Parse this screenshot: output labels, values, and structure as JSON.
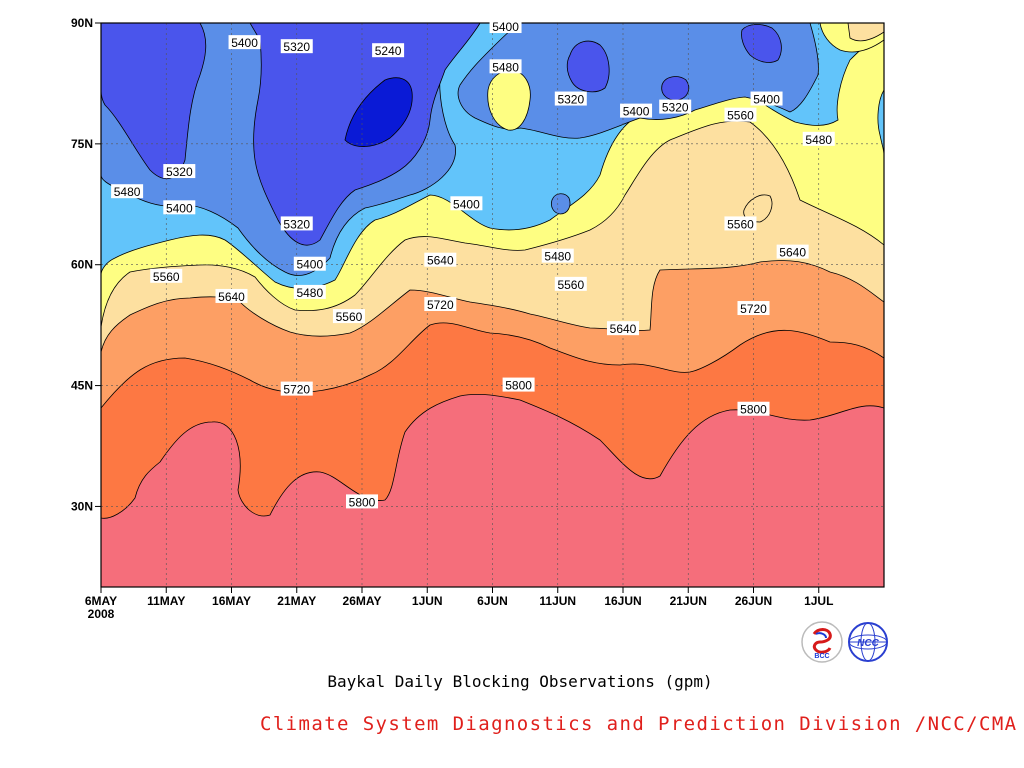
{
  "chart_data": {
    "type": "contour",
    "title": "Baykal Daily Blocking Observations (gpm)",
    "x_ticks": [
      "6MAY",
      "11MAY",
      "16MAY",
      "21MAY",
      "26MAY",
      "1JUN",
      "6JUN",
      "11JUN",
      "16JUN",
      "21JUN",
      "26JUN",
      "1JUL"
    ],
    "x_year": "2008",
    "y_ticks": [
      "30N",
      "45N",
      "60N",
      "75N",
      "90N"
    ],
    "xlim": [
      "2008-05-06",
      "2008-07-05"
    ],
    "ylim": [
      20,
      90
    ],
    "grid": true,
    "levels": [
      5240,
      5320,
      5400,
      5480,
      5560,
      5640,
      5720,
      5800
    ],
    "fill_colors": {
      "below_5240": "#0a1ad6",
      "5240_5320": "#4a55ec",
      "5320_5400": "#5a8ee8",
      "5400_5480": "#62c4fa",
      "5480_5560": "#fefe82",
      "5560_5640": "#fde0a0",
      "5640_5720": "#fd9f64",
      "5720_5800": "#fd7843",
      "above_5800": "#f56e7b"
    },
    "contour_labels": [
      {
        "date": "2008-05-17",
        "lat": 87.5,
        "level": 5400
      },
      {
        "date": "2008-05-21",
        "lat": 87.0,
        "level": 5320
      },
      {
        "date": "2008-05-28",
        "lat": 86.5,
        "level": 5240
      },
      {
        "date": "2008-06-06",
        "lat": 89.5,
        "level": 5400
      },
      {
        "date": "2008-06-06",
        "lat": 84.5,
        "level": 5480
      },
      {
        "date": "2008-06-11",
        "lat": 80.5,
        "level": 5320
      },
      {
        "date": "2008-06-16",
        "lat": 79.0,
        "level": 5400
      },
      {
        "date": "2008-06-19",
        "lat": 79.5,
        "level": 5320
      },
      {
        "date": "2008-06-26",
        "lat": 80.5,
        "level": 5400
      },
      {
        "date": "2008-06-24",
        "lat": 78.5,
        "level": 5560
      },
      {
        "date": "2008-06-30",
        "lat": 75.5,
        "level": 5480
      },
      {
        "date": "2008-05-12",
        "lat": 71.5,
        "level": 5320
      },
      {
        "date": "2008-05-08",
        "lat": 69.0,
        "level": 5480
      },
      {
        "date": "2008-05-12",
        "lat": 67.0,
        "level": 5400
      },
      {
        "date": "2008-05-21",
        "lat": 65.0,
        "level": 5320
      },
      {
        "date": "2008-06-03",
        "lat": 67.5,
        "level": 5400
      },
      {
        "date": "2008-06-24",
        "lat": 65.0,
        "level": 5560
      },
      {
        "date": "2008-06-28",
        "lat": 61.5,
        "level": 5640
      },
      {
        "date": "2008-05-22",
        "lat": 60.0,
        "level": 5400
      },
      {
        "date": "2008-05-11",
        "lat": 58.5,
        "level": 5560
      },
      {
        "date": "2008-05-16",
        "lat": 56.0,
        "level": 5640
      },
      {
        "date": "2008-05-22",
        "lat": 56.5,
        "level": 5480
      },
      {
        "date": "2008-05-25",
        "lat": 53.5,
        "level": 5560
      },
      {
        "date": "2008-06-01",
        "lat": 60.5,
        "level": 5640
      },
      {
        "date": "2008-06-10",
        "lat": 61.0,
        "level": 5480
      },
      {
        "date": "2008-06-11",
        "lat": 57.5,
        "level": 5560
      },
      {
        "date": "2008-06-01",
        "lat": 55.0,
        "level": 5720
      },
      {
        "date": "2008-06-15",
        "lat": 52.0,
        "level": 5640
      },
      {
        "date": "2008-06-25",
        "lat": 54.5,
        "level": 5720
      },
      {
        "date": "2008-05-21",
        "lat": 44.5,
        "level": 5720
      },
      {
        "date": "2008-06-07",
        "lat": 45.0,
        "level": 5800
      },
      {
        "date": "2008-06-25",
        "lat": 42.0,
        "level": 5800
      },
      {
        "date": "2008-05-26",
        "lat": 30.5,
        "level": 5800
      }
    ]
  },
  "caption": "Baykal Daily Blocking Observations (gpm)",
  "credit": "Climate System Diagnostics and Prediction Division /NCC/CMA",
  "logos": [
    {
      "icon": "bcc-logo-icon",
      "text": "BCC"
    },
    {
      "icon": "ncc-logo-icon",
      "text": "NCC"
    }
  ]
}
